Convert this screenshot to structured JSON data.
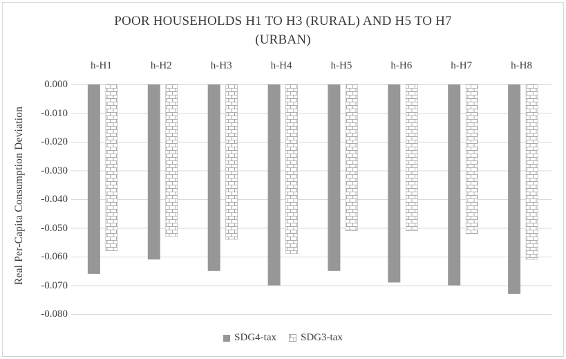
{
  "title": {
    "line1": "POOR HOUSEHOLDS H1 TO H3 (RURAL) AND H5 TO H7",
    "line2": "(URBAN)"
  },
  "axes": {
    "y_title": "Real Per-Capita Consumption Deviation"
  },
  "colors": {
    "bar_solid": "#979797",
    "brick_line": "#ababab",
    "brick_fill": "#ffffff",
    "gridline": "#d9d9d9",
    "text": "#3f3f3f"
  },
  "chart_data": {
    "type": "bar",
    "title": "POOR HOUSEHOLDS H1 TO H3 (RURAL) AND H5 TO H7 (URBAN)",
    "xlabel": "",
    "ylabel": "Real Per-Capita Consumption Deviation",
    "categories": [
      "h-H1",
      "h-H2",
      "h-H3",
      "h-H4",
      "h-H5",
      "h-H6",
      "h-H7",
      "h-H8"
    ],
    "series": [
      {
        "name": "SDG4-tax",
        "style": "solid",
        "values": [
          -0.066,
          -0.061,
          -0.065,
          -0.07,
          -0.065,
          -0.069,
          -0.07,
          -0.073
        ]
      },
      {
        "name": "SDG3-tax",
        "style": "brick",
        "values": [
          -0.058,
          -0.053,
          -0.054,
          -0.059,
          -0.051,
          -0.051,
          -0.052,
          -0.061
        ]
      }
    ],
    "ylim": [
      0,
      -0.08
    ],
    "yticks": [
      0,
      -0.01,
      -0.02,
      -0.03,
      -0.04,
      -0.05,
      -0.06,
      -0.07,
      -0.08
    ],
    "ytick_labels": [
      "0.000",
      "-0.010",
      "-0.020",
      "-0.030",
      "-0.040",
      "-0.050",
      "-0.060",
      "-0.070",
      "-0.080"
    ],
    "grid": "horizontal",
    "legend_position": "bottom"
  }
}
